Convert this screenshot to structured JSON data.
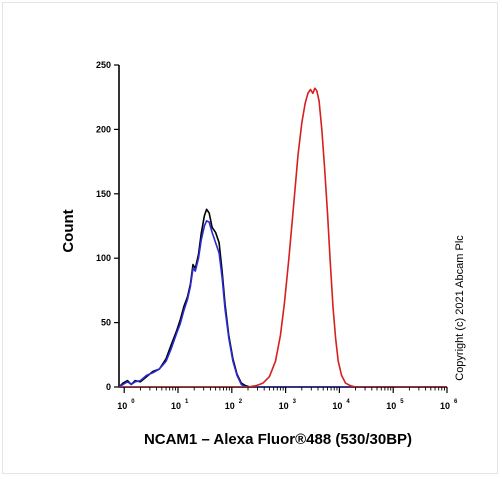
{
  "chart_data": {
    "type": "line",
    "title": "",
    "xlabel": "NCAM1 – Alexa Fluor®488 (530/30BP)",
    "ylabel": "Count",
    "x_scale": "log",
    "xlim": [
      0.8,
      1000000
    ],
    "ylim": [
      0,
      250
    ],
    "y_ticks": [
      0,
      50,
      100,
      150,
      200,
      250
    ],
    "x_ticks": [
      {
        "value": 1,
        "base": "10",
        "exp": "0"
      },
      {
        "value": 10,
        "base": "10",
        "exp": "1"
      },
      {
        "value": 100,
        "base": "10",
        "exp": "2"
      },
      {
        "value": 1000,
        "base": "10",
        "exp": "3"
      },
      {
        "value": 10000,
        "base": "10",
        "exp": "4"
      },
      {
        "value": 100000,
        "base": "10",
        "exp": "5"
      },
      {
        "value": 1000000,
        "base": "10",
        "exp": "6"
      }
    ],
    "grid": false,
    "series": [
      {
        "color": "#000000",
        "points": [
          [
            0.8,
            0
          ],
          [
            0.95,
            3
          ],
          [
            1.15,
            5
          ],
          [
            1.35,
            2
          ],
          [
            1.6,
            5
          ],
          [
            2.0,
            4
          ],
          [
            2.6,
            8
          ],
          [
            3.4,
            12
          ],
          [
            4.5,
            14
          ],
          [
            6.0,
            22
          ],
          [
            7.5,
            33
          ],
          [
            9.5,
            44
          ],
          [
            11,
            52
          ],
          [
            13,
            63
          ],
          [
            15,
            70
          ],
          [
            17,
            80
          ],
          [
            19,
            95
          ],
          [
            21,
            92
          ],
          [
            24,
            103
          ],
          [
            27,
            119
          ],
          [
            31,
            133
          ],
          [
            34,
            138
          ],
          [
            38,
            135
          ],
          [
            43,
            124
          ],
          [
            50,
            120
          ],
          [
            58,
            112
          ],
          [
            66,
            90
          ],
          [
            75,
            64
          ],
          [
            88,
            40
          ],
          [
            105,
            22
          ],
          [
            125,
            10
          ],
          [
            150,
            3
          ],
          [
            180,
            1
          ],
          [
            220,
            0
          ],
          [
            300,
            0
          ],
          [
            1000000,
            0
          ]
        ]
      },
      {
        "color": "#2a2ad6",
        "points": [
          [
            0.8,
            0
          ],
          [
            0.95,
            2
          ],
          [
            1.15,
            4
          ],
          [
            1.35,
            2
          ],
          [
            1.6,
            4
          ],
          [
            2.0,
            5
          ],
          [
            2.6,
            9
          ],
          [
            3.4,
            11
          ],
          [
            4.5,
            14
          ],
          [
            6.0,
            20
          ],
          [
            7.5,
            30
          ],
          [
            9.5,
            42
          ],
          [
            11,
            49
          ],
          [
            13,
            60
          ],
          [
            15,
            68
          ],
          [
            17,
            78
          ],
          [
            19,
            92
          ],
          [
            21,
            90
          ],
          [
            24,
            100
          ],
          [
            27,
            114
          ],
          [
            31,
            125
          ],
          [
            34,
            129
          ],
          [
            38,
            128
          ],
          [
            43,
            120
          ],
          [
            50,
            112
          ],
          [
            58,
            104
          ],
          [
            66,
            85
          ],
          [
            75,
            60
          ],
          [
            88,
            38
          ],
          [
            105,
            20
          ],
          [
            125,
            9
          ],
          [
            150,
            2
          ],
          [
            180,
            0
          ],
          [
            220,
            0
          ],
          [
            1000000,
            0
          ]
        ]
      },
      {
        "color": "#d61f1f",
        "points": [
          [
            0.8,
            0
          ],
          [
            200,
            0
          ],
          [
            280,
            1
          ],
          [
            380,
            3
          ],
          [
            500,
            8
          ],
          [
            650,
            20
          ],
          [
            800,
            40
          ],
          [
            950,
            65
          ],
          [
            1150,
            100
          ],
          [
            1400,
            140
          ],
          [
            1700,
            180
          ],
          [
            2000,
            205
          ],
          [
            2300,
            220
          ],
          [
            2600,
            228
          ],
          [
            2900,
            231
          ],
          [
            3200,
            228
          ],
          [
            3500,
            232
          ],
          [
            3800,
            230
          ],
          [
            4200,
            222
          ],
          [
            4700,
            200
          ],
          [
            5300,
            170
          ],
          [
            6000,
            135
          ],
          [
            6800,
            95
          ],
          [
            7600,
            62
          ],
          [
            8500,
            38
          ],
          [
            9500,
            20
          ],
          [
            11000,
            9
          ],
          [
            13000,
            3
          ],
          [
            16000,
            1
          ],
          [
            20000,
            0
          ],
          [
            1000000,
            0
          ]
        ]
      }
    ]
  },
  "copyright": "Copyright (c) 2021 Abcam Plc"
}
